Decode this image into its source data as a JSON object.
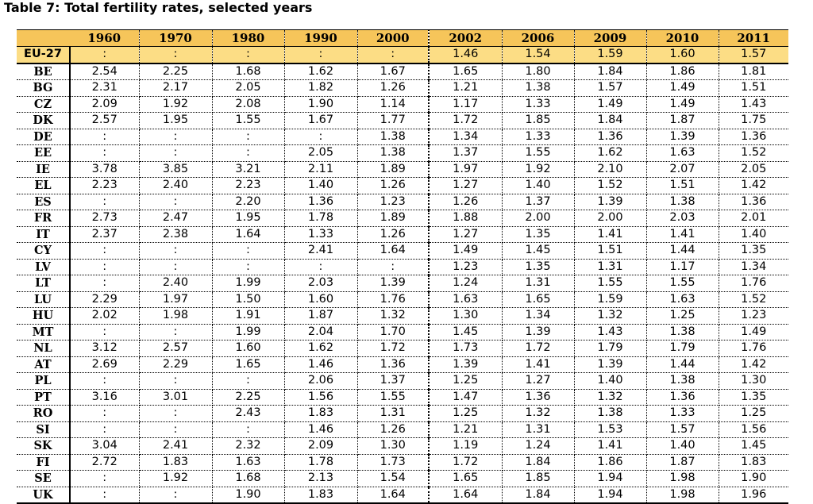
{
  "title": "Table 7: Total fertility rates, selected years",
  "columns": [
    "1960",
    "1970",
    "1980",
    "1990",
    "2000",
    "2002",
    "2006",
    "2009",
    "2010",
    "2011"
  ],
  "rows": [
    {
      "label": "EU-27",
      "values": [
        ":",
        ":",
        ":",
        ":",
        ":",
        "1.46",
        "1.54",
        "1.59",
        "1.60",
        "1.57"
      ]
    },
    {
      "label": "BE",
      "values": [
        "2.54",
        "2.25",
        "1.68",
        "1.62",
        "1.67",
        "1.65",
        "1.80",
        "1.84",
        "1.86",
        "1.81"
      ]
    },
    {
      "label": "BG",
      "values": [
        "2.31",
        "2.17",
        "2.05",
        "1.82",
        "1.26",
        "1.21",
        "1.38",
        "1.57",
        "1.49",
        "1.51"
      ]
    },
    {
      "label": "CZ",
      "values": [
        "2.09",
        "1.92",
        "2.08",
        "1.90",
        "1.14",
        "1.17",
        "1.33",
        "1.49",
        "1.49",
        "1.43"
      ]
    },
    {
      "label": "DK",
      "values": [
        "2.57",
        "1.95",
        "1.55",
        "1.67",
        "1.77",
        "1.72",
        "1.85",
        "1.84",
        "1.87",
        "1.75"
      ]
    },
    {
      "label": "DE",
      "values": [
        ":",
        ":",
        ":",
        ":",
        "1.38",
        "1.34",
        "1.33",
        "1.36",
        "1.39",
        "1.36"
      ]
    },
    {
      "label": "EE",
      "values": [
        ":",
        ":",
        ":",
        "2.05",
        "1.38",
        "1.37",
        "1.55",
        "1.62",
        "1.63",
        "1.52"
      ]
    },
    {
      "label": "IE",
      "values": [
        "3.78",
        "3.85",
        "3.21",
        "2.11",
        "1.89",
        "1.97",
        "1.92",
        "2.10",
        "2.07",
        "2.05"
      ]
    },
    {
      "label": "EL",
      "values": [
        "2.23",
        "2.40",
        "2.23",
        "1.40",
        "1.26",
        "1.27",
        "1.40",
        "1.52",
        "1.51",
        "1.42"
      ]
    },
    {
      "label": "ES",
      "values": [
        ":",
        ":",
        "2.20",
        "1.36",
        "1.23",
        "1.26",
        "1.37",
        "1.39",
        "1.38",
        "1.36"
      ]
    },
    {
      "label": "FR",
      "values": [
        "2.73",
        "2.47",
        "1.95",
        "1.78",
        "1.89",
        "1.88",
        "2.00",
        "2.00",
        "2.03",
        "2.01"
      ]
    },
    {
      "label": "IT",
      "values": [
        "2.37",
        "2.38",
        "1.64",
        "1.33",
        "1.26",
        "1.27",
        "1.35",
        "1.41",
        "1.41",
        "1.40"
      ]
    },
    {
      "label": "CY",
      "values": [
        ":",
        ":",
        ":",
        "2.41",
        "1.64",
        "1.49",
        "1.45",
        "1.51",
        "1.44",
        "1.35"
      ]
    },
    {
      "label": "LV",
      "values": [
        ":",
        ":",
        ":",
        ":",
        ":",
        "1.23",
        "1.35",
        "1.31",
        "1.17",
        "1.34"
      ]
    },
    {
      "label": "LT",
      "values": [
        ":",
        "2.40",
        "1.99",
        "2.03",
        "1.39",
        "1.24",
        "1.31",
        "1.55",
        "1.55",
        "1.76"
      ]
    },
    {
      "label": "LU",
      "values": [
        "2.29",
        "1.97",
        "1.50",
        "1.60",
        "1.76",
        "1.63",
        "1.65",
        "1.59",
        "1.63",
        "1.52"
      ]
    },
    {
      "label": "HU",
      "values": [
        "2.02",
        "1.98",
        "1.91",
        "1.87",
        "1.32",
        "1.30",
        "1.34",
        "1.32",
        "1.25",
        "1.23"
      ]
    },
    {
      "label": "MT",
      "values": [
        ":",
        ":",
        "1.99",
        "2.04",
        "1.70",
        "1.45",
        "1.39",
        "1.43",
        "1.38",
        "1.49"
      ]
    },
    {
      "label": "NL",
      "values": [
        "3.12",
        "2.57",
        "1.60",
        "1.62",
        "1.72",
        "1.73",
        "1.72",
        "1.79",
        "1.79",
        "1.76"
      ]
    },
    {
      "label": "AT",
      "values": [
        "2.69",
        "2.29",
        "1.65",
        "1.46",
        "1.36",
        "1.39",
        "1.41",
        "1.39",
        "1.44",
        "1.42"
      ]
    },
    {
      "label": "PL",
      "values": [
        ":",
        ":",
        ":",
        "2.06",
        "1.37",
        "1.25",
        "1.27",
        "1.40",
        "1.38",
        "1.30"
      ]
    },
    {
      "label": "PT",
      "values": [
        "3.16",
        "3.01",
        "2.25",
        "1.56",
        "1.55",
        "1.47",
        "1.36",
        "1.32",
        "1.36",
        "1.35"
      ]
    },
    {
      "label": "RO",
      "values": [
        ":",
        ":",
        "2.43",
        "1.83",
        "1.31",
        "1.25",
        "1.32",
        "1.38",
        "1.33",
        "1.25"
      ]
    },
    {
      "label": "SI",
      "values": [
        ":",
        ":",
        ":",
        "1.46",
        "1.26",
        "1.21",
        "1.31",
        "1.53",
        "1.57",
        "1.56"
      ]
    },
    {
      "label": "SK",
      "values": [
        "3.04",
        "2.41",
        "2.32",
        "2.09",
        "1.30",
        "1.19",
        "1.24",
        "1.41",
        "1.40",
        "1.45"
      ]
    },
    {
      "label": "FI",
      "values": [
        "2.72",
        "1.83",
        "1.63",
        "1.78",
        "1.73",
        "1.72",
        "1.84",
        "1.86",
        "1.87",
        "1.83"
      ]
    },
    {
      "label": "SE",
      "values": [
        ":",
        "1.92",
        "1.68",
        "2.13",
        "1.54",
        "1.65",
        "1.85",
        "1.94",
        "1.98",
        "1.90"
      ]
    },
    {
      "label": "UK",
      "values": [
        ":",
        ":",
        "1.90",
        "1.83",
        "1.64",
        "1.64",
        "1.84",
        "1.94",
        "1.98",
        "1.96"
      ]
    }
  ]
}
